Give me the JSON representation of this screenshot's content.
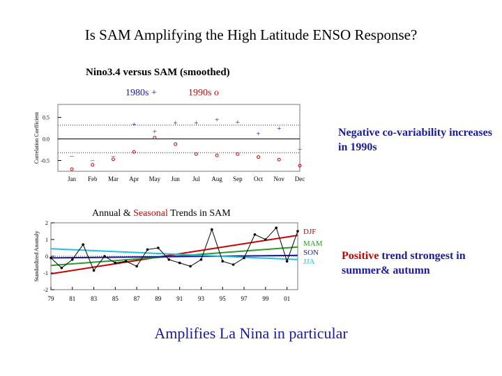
{
  "title": "Is SAM Amplifying the High Latitude ENSO Response?",
  "bottom_text": "Amplifies La Nina in particular",
  "colors": {
    "blue_text": "#1a1aa0",
    "red_text": "#cc0000",
    "djf": "#cc0000",
    "mam": "#2a9a2a",
    "son": "#1a1aa0",
    "jja": "#20c0e0"
  },
  "chart_data": [
    {
      "type": "scatter",
      "title": "Nino3.4 versus SAM (smoothed)",
      "ylabel": "Correlation Coefficient",
      "xlabel": "",
      "categories": [
        "Jan",
        "Feb",
        "Mar",
        "Apr",
        "May",
        "Jun",
        "Jul",
        "Aug",
        "Sep",
        "Oct",
        "Nov",
        "Dec"
      ],
      "y_ticks": [
        "0.5",
        "0.0",
        "-0.5"
      ],
      "ylim": [
        -0.75,
        0.8
      ],
      "reference_lines": [
        0.32,
        -0.32
      ],
      "legend": {
        "s1980_label": "1980s +",
        "s1990_label": "1990s o"
      },
      "series": [
        {
          "name": "1980s",
          "marker": "+",
          "values": [
            -0.38,
            -0.48,
            -0.38,
            0.35,
            0.18,
            0.38,
            0.38,
            0.45,
            0.4,
            0.13,
            0.25,
            -0.22
          ]
        },
        {
          "name": "1990s",
          "marker": "o",
          "values": [
            -0.7,
            -0.6,
            -0.47,
            -0.3,
            0.03,
            -0.12,
            -0.35,
            -0.38,
            -0.35,
            -0.42,
            -0.48,
            -0.62
          ]
        }
      ],
      "annotation": "Negative co-variability increases in 1990s"
    },
    {
      "type": "line",
      "title": "Annual & Seasonal Trends in SAM",
      "title_plain": "Annual &",
      "title_highlight": "Seasonal",
      "title_rest": "Trends in SAM",
      "ylabel": "Standardized Anomaly",
      "x_ticks": [
        "79",
        "81",
        "83",
        "85",
        "87",
        "89",
        "91",
        "93",
        "95",
        "97",
        "99",
        "01"
      ],
      "y_ticks": [
        "2",
        "1",
        "0",
        "-1",
        "-2"
      ],
      "xlim": [
        1979,
        2002
      ],
      "ylim": [
        -2,
        2
      ],
      "annual": {
        "x": [
          1979,
          1980,
          1981,
          1982,
          1983,
          1984,
          1985,
          1986,
          1987,
          1988,
          1989,
          1990,
          1991,
          1992,
          1993,
          1994,
          1995,
          1996,
          1997,
          1998,
          1999,
          2000,
          2001,
          2002
        ],
        "values": [
          -0.1,
          -0.7,
          -0.2,
          0.7,
          -0.85,
          0.0,
          -0.4,
          -0.3,
          -0.6,
          0.4,
          0.5,
          -0.2,
          -0.4,
          -0.6,
          -0.2,
          1.6,
          -0.3,
          -0.5,
          -0.1,
          1.3,
          1.0,
          1.7,
          -0.3,
          1.5
        ]
      },
      "trends": [
        {
          "name": "DJF",
          "start": -1.05,
          "end": 1.25
        },
        {
          "name": "MAM",
          "start": -0.55,
          "end": 0.55
        },
        {
          "name": "SON",
          "start": -0.1,
          "end": 0.05
        },
        {
          "name": "JJA",
          "start": 0.45,
          "end": -0.2
        }
      ],
      "annotation_highlight": "Positive",
      "annotation_rest": "trend strongest in summer& autumn"
    }
  ]
}
